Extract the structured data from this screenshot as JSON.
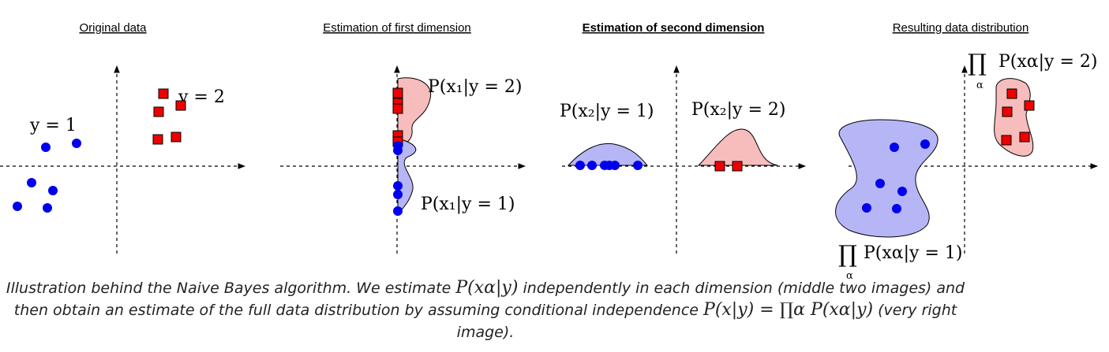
{
  "panels": {
    "p1": {
      "title": "Original data",
      "label_y1": "y = 1",
      "label_y2": "y = 2",
      "blue_points": [
        [
          58,
          187
        ],
        [
          97,
          182
        ],
        [
          40,
          232
        ],
        [
          67,
          242
        ],
        [
          22,
          262
        ],
        [
          60,
          264
        ]
      ],
      "red_points": [
        [
          207,
          119
        ],
        [
          229,
          134
        ],
        [
          201,
          142
        ],
        [
          200,
          177
        ],
        [
          223,
          174
        ]
      ]
    },
    "p2": {
      "title": "Estimation of first dimension",
      "label_red": "P(x₁|y = 2)",
      "label_blue": "P(x₁|y = 1)",
      "red_points": [
        [
          504,
          118
        ],
        [
          504,
          131
        ],
        [
          504,
          138
        ],
        [
          504,
          172
        ],
        [
          504,
          180
        ]
      ],
      "blue_points": [
        [
          504,
          185
        ],
        [
          504,
          191
        ],
        [
          504,
          236
        ],
        [
          504,
          247
        ],
        [
          504,
          268
        ]
      ]
    },
    "p3": {
      "title": "Estimation of second dimension",
      "label_blue": "P(x₂|y = 1)",
      "label_red": "P(x₂|y = 2)",
      "blue_points": [
        [
          735,
          210
        ],
        [
          750,
          210
        ],
        [
          766,
          210
        ],
        [
          772,
          210
        ],
        [
          779,
          210
        ],
        [
          808,
          210
        ]
      ],
      "red_points": [
        [
          912,
          211
        ],
        [
          934,
          211
        ]
      ]
    },
    "p4": {
      "title": "Resulting data distribution",
      "label_prod": "∏",
      "label_alpha": "α",
      "label_red": "P(xα|y = 2)",
      "label_blue": "P(xα|y = 1)",
      "blue_points": [
        [
          1133,
          187
        ],
        [
          1172,
          183
        ],
        [
          1115,
          233
        ],
        [
          1143,
          243
        ],
        [
          1098,
          264
        ],
        [
          1136,
          265
        ]
      ],
      "red_points": [
        [
          1282,
          119
        ],
        [
          1304,
          134
        ],
        [
          1276,
          142
        ],
        [
          1275,
          178
        ],
        [
          1298,
          174
        ]
      ]
    }
  },
  "caption": {
    "part1": "Illustration behind the Naive Bayes algorithm. We estimate ",
    "math1": "P(xα|y)",
    "part2": " independently in each dimension (middle two images) and then obtain an estimate of the full data distribution by assuming conditional independence ",
    "math2": "P(x|y) = ∏α P(xα|y)",
    "part3": " (very right image)."
  },
  "colors": {
    "blue_point": "#0000ee",
    "red_point": "#ee0000",
    "blue_fill": "#b6b6f7",
    "red_fill": "#f7bcbc"
  }
}
